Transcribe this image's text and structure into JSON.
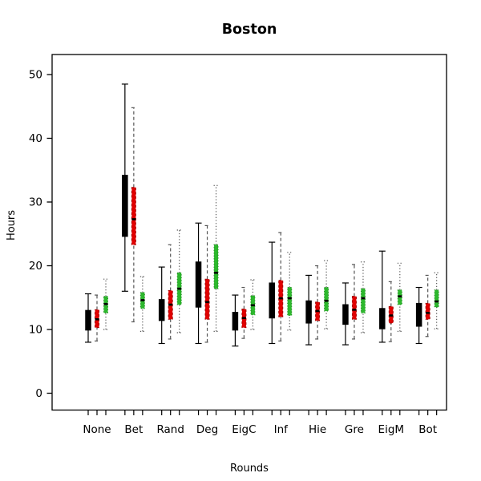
{
  "chart_data": {
    "type": "grouped_boxplot",
    "title": "Boston",
    "xlabel": "Rounds",
    "ylabel": "Hours",
    "ylim": [
      0,
      52
    ],
    "yticks": [
      0,
      10,
      20,
      30,
      40,
      50
    ],
    "grid": false,
    "legend": "none",
    "categories": [
      "None",
      "Bet",
      "Rand",
      "Deg",
      "EigC",
      "Inf",
      "Hie",
      "Gre",
      "EigM",
      "Bot"
    ],
    "series": [
      {
        "name": "black-solid",
        "color": "#000000",
        "line_style": "solid",
        "boxes": [
          {
            "category": "None",
            "min": 8.0,
            "q1": 9.9,
            "median": 11.5,
            "q3": 13.0,
            "max": 15.6
          },
          {
            "category": "Bet",
            "min": 16.0,
            "q1": 24.6,
            "median": 29.5,
            "q3": 34.2,
            "max": 48.5
          },
          {
            "category": "Rand",
            "min": 7.8,
            "q1": 11.4,
            "median": 13.0,
            "q3": 14.7,
            "max": 19.8
          },
          {
            "category": "Deg",
            "min": 7.8,
            "q1": 13.5,
            "median": 16.5,
            "q3": 20.6,
            "max": 26.7
          },
          {
            "category": "EigC",
            "min": 7.4,
            "q1": 9.9,
            "median": 11.3,
            "q3": 12.7,
            "max": 15.4
          },
          {
            "category": "Inf",
            "min": 7.8,
            "q1": 11.8,
            "median": 14.6,
            "q3": 17.3,
            "max": 23.7
          },
          {
            "category": "Hie",
            "min": 7.6,
            "q1": 11.0,
            "median": 12.7,
            "q3": 14.5,
            "max": 18.5
          },
          {
            "category": "Gre",
            "min": 7.6,
            "q1": 10.8,
            "median": 12.3,
            "q3": 13.9,
            "max": 17.3
          },
          {
            "category": "EigM",
            "min": 8.0,
            "q1": 10.1,
            "median": 11.7,
            "q3": 13.3,
            "max": 22.3
          },
          {
            "category": "Bot",
            "min": 7.8,
            "q1": 10.5,
            "median": 12.3,
            "q3": 14.1,
            "max": 16.6
          }
        ]
      },
      {
        "name": "red-dashed",
        "color": "#e10000",
        "line_style": "dashed",
        "boxes": [
          {
            "category": "None",
            "min": 8.2,
            "q1": 10.3,
            "median": 11.6,
            "q3": 13.1,
            "max": 15.4
          },
          {
            "category": "Bet",
            "min": 11.2,
            "q1": 23.3,
            "median": 27.3,
            "q3": 32.3,
            "max": 44.8
          },
          {
            "category": "Rand",
            "min": 8.5,
            "q1": 11.6,
            "median": 13.9,
            "q3": 16.1,
            "max": 23.3
          },
          {
            "category": "Deg",
            "min": 8.0,
            "q1": 11.6,
            "median": 14.3,
            "q3": 17.9,
            "max": 26.3
          },
          {
            "category": "EigC",
            "min": 8.6,
            "q1": 10.3,
            "median": 11.8,
            "q3": 13.2,
            "max": 16.6
          },
          {
            "category": "Inf",
            "min": 8.2,
            "q1": 12.0,
            "median": 14.9,
            "q3": 17.7,
            "max": 25.2
          },
          {
            "category": "Hie",
            "min": 8.5,
            "q1": 11.4,
            "median": 12.9,
            "q3": 14.3,
            "max": 20.0
          },
          {
            "category": "Gre",
            "min": 8.5,
            "q1": 11.6,
            "median": 13.1,
            "q3": 15.2,
            "max": 20.2
          },
          {
            "category": "EigM",
            "min": 8.1,
            "q1": 11.0,
            "median": 12.2,
            "q3": 13.6,
            "max": 17.5
          },
          {
            "category": "Bot",
            "min": 8.9,
            "q1": 11.6,
            "median": 12.6,
            "q3": 14.1,
            "max": 18.5
          }
        ]
      },
      {
        "name": "green-dotted",
        "color": "#2db82d",
        "line_style": "dotted",
        "boxes": [
          {
            "category": "None",
            "min": 10.0,
            "q1": 12.6,
            "median": 14.0,
            "q3": 15.2,
            "max": 17.9
          },
          {
            "category": "Bet",
            "min": 9.7,
            "q1": 13.3,
            "median": 14.6,
            "q3": 15.8,
            "max": 18.3
          },
          {
            "category": "Rand",
            "min": 9.5,
            "q1": 13.9,
            "median": 16.4,
            "q3": 18.9,
            "max": 25.6
          },
          {
            "category": "Deg",
            "min": 9.7,
            "q1": 16.4,
            "median": 18.9,
            "q3": 23.3,
            "max": 32.6
          },
          {
            "category": "EigC",
            "min": 10.0,
            "q1": 12.3,
            "median": 13.8,
            "q3": 15.3,
            "max": 17.8
          },
          {
            "category": "Inf",
            "min": 9.9,
            "q1": 12.2,
            "median": 14.9,
            "q3": 16.6,
            "max": 22.1
          },
          {
            "category": "Hie",
            "min": 10.1,
            "q1": 12.9,
            "median": 14.5,
            "q3": 16.6,
            "max": 20.8
          },
          {
            "category": "Gre",
            "min": 9.5,
            "q1": 12.6,
            "median": 14.9,
            "q3": 16.4,
            "max": 20.6
          },
          {
            "category": "EigM",
            "min": 9.7,
            "q1": 13.9,
            "median": 15.2,
            "q3": 16.2,
            "max": 20.4
          },
          {
            "category": "Bot",
            "min": 10.1,
            "q1": 13.5,
            "median": 14.4,
            "q3": 16.2,
            "max": 18.9
          }
        ]
      }
    ]
  }
}
